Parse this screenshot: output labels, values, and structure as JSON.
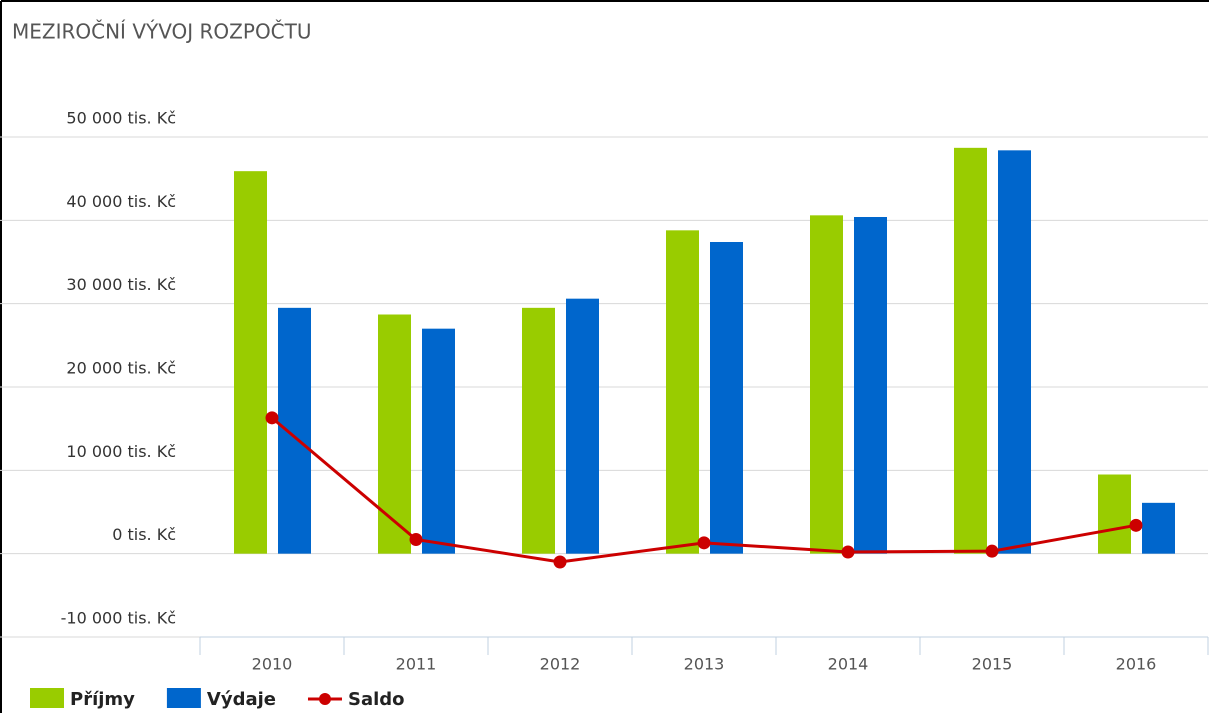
{
  "chart_data": {
    "type": "bar_line",
    "title": "MEZIROČNÍ VÝVOJ ROZPOČTU",
    "categories": [
      "2010",
      "2011",
      "2012",
      "2013",
      "2014",
      "2015",
      "2016"
    ],
    "series": [
      {
        "name": "Příjmy",
        "type": "bar",
        "color": "#99cc00",
        "values": [
          45900,
          28700,
          29500,
          38800,
          40600,
          48700,
          9500
        ]
      },
      {
        "name": "Výdaje",
        "type": "bar",
        "color": "#0066cc",
        "values": [
          29500,
          27000,
          30600,
          37400,
          40400,
          48400,
          6100
        ]
      },
      {
        "name": "Saldo",
        "type": "line",
        "color": "#cc0000",
        "values": [
          16300,
          1700,
          -1000,
          1300,
          200,
          300,
          3400
        ]
      }
    ],
    "ylim": [
      -10000,
      50000
    ],
    "yticks": [
      {
        "value": -10000,
        "label": "-10 000 tis. Kč"
      },
      {
        "value": 0,
        "label": "0 tis. Kč"
      },
      {
        "value": 10000,
        "label": "10 000 tis. Kč"
      },
      {
        "value": 20000,
        "label": "20 000 tis. Kč"
      },
      {
        "value": 30000,
        "label": "30 000 tis. Kč"
      },
      {
        "value": 40000,
        "label": "40 000 tis. Kč"
      },
      {
        "value": 50000,
        "label": "50 000 tis. Kč"
      }
    ],
    "grid": true,
    "legend": "bottom-left"
  }
}
